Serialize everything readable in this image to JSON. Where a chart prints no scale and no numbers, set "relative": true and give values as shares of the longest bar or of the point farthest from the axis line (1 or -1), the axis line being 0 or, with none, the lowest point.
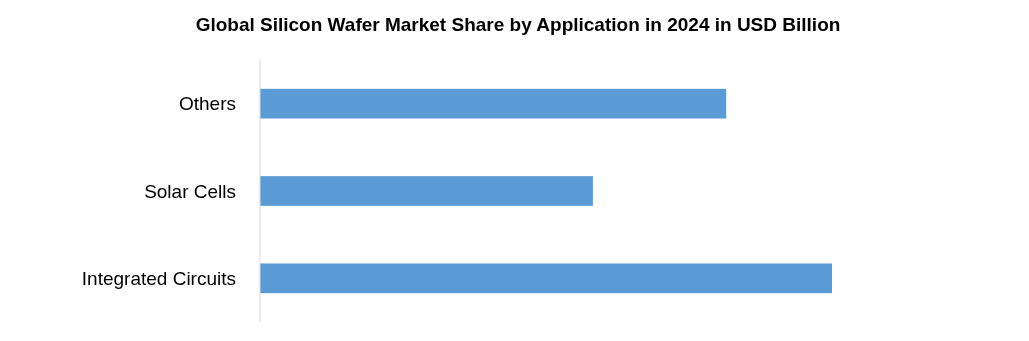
{
  "chart_data": {
    "type": "bar",
    "orientation": "horizontal",
    "relative": true,
    "title": "Global Silicon Wafer Market Share by Application in 2024 in USD Billion",
    "categories": [
      "Others",
      "Solar Cells",
      "Integrated Circuits"
    ],
    "values": [
      0.815,
      0.582,
      1
    ],
    "color": "#5b9bd5"
  }
}
